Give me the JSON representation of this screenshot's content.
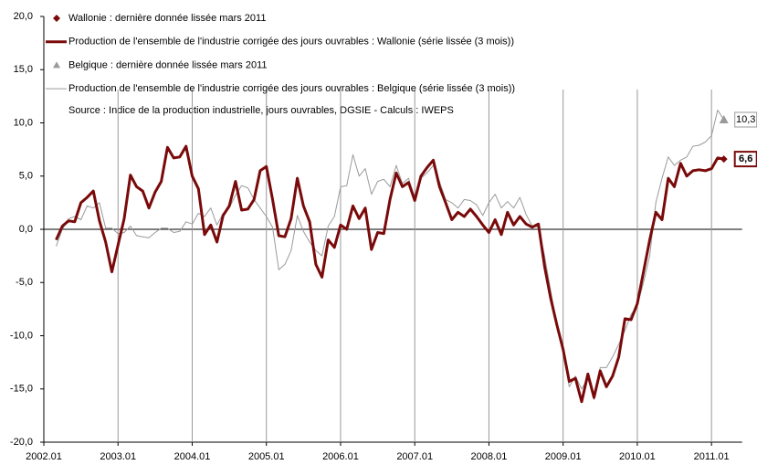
{
  "chart_data": {
    "type": "line",
    "source": "Source : Indice de la production industrielle, jours ouvrables, DGSIE - Calculs : IWEPS",
    "categories": [
      "2002.01",
      null,
      null,
      null,
      null,
      null,
      null,
      null,
      null,
      null,
      null,
      null,
      "2003.01",
      null,
      null,
      null,
      null,
      null,
      null,
      null,
      null,
      null,
      null,
      null,
      "2004.01",
      null,
      null,
      null,
      null,
      null,
      null,
      null,
      null,
      null,
      null,
      null,
      "2005.01",
      null,
      null,
      null,
      null,
      null,
      null,
      null,
      null,
      null,
      null,
      null,
      "2006.01",
      null,
      null,
      null,
      null,
      null,
      null,
      null,
      null,
      null,
      null,
      null,
      "2007.01",
      null,
      null,
      null,
      null,
      null,
      null,
      null,
      null,
      null,
      null,
      null,
      "2008.01",
      null,
      null,
      null,
      null,
      null,
      null,
      null,
      null,
      null,
      null,
      null,
      "2009.01",
      null,
      null,
      null,
      null,
      null,
      null,
      null,
      null,
      null,
      null,
      null,
      "2010.01",
      null,
      null,
      null,
      null,
      null,
      null,
      null,
      null,
      null,
      null,
      null,
      "2011.01",
      null,
      null
    ],
    "ylim": [
      -20,
      20
    ],
    "yticks": [
      {
        "value": -20,
        "label": "-20,0"
      },
      {
        "value": -15,
        "label": "-15,0"
      },
      {
        "value": -10,
        "label": "-10,0"
      },
      {
        "value": -5,
        "label": "-5,0"
      },
      {
        "value": 0,
        "label": "0,0"
      },
      {
        "value": 5,
        "label": "5,0"
      },
      {
        "value": 10,
        "label": "10,0"
      },
      {
        "value": 15,
        "label": "15,0"
      },
      {
        "value": 20,
        "label": "20,0"
      }
    ],
    "grid": true,
    "legend": "top-left",
    "series": [
      {
        "name": "Wallonie : dernière donnée lissée mars 2011",
        "color": "#7a0a0a",
        "marker": "diamond",
        "values": [
          null,
          null,
          null,
          null,
          null,
          null,
          null,
          null,
          null,
          null,
          null,
          null,
          null,
          null,
          null,
          null,
          null,
          null,
          null,
          null,
          null,
          null,
          null,
          null,
          null,
          null,
          null,
          null,
          null,
          null,
          null,
          null,
          null,
          null,
          null,
          null,
          null,
          null,
          null,
          null,
          null,
          null,
          null,
          null,
          null,
          null,
          null,
          null,
          null,
          null,
          null,
          null,
          null,
          null,
          null,
          null,
          null,
          null,
          null,
          null,
          null,
          null,
          null,
          null,
          null,
          null,
          null,
          null,
          null,
          null,
          null,
          null,
          null,
          null,
          null,
          null,
          null,
          null,
          null,
          null,
          null,
          null,
          null,
          null,
          null,
          null,
          null,
          null,
          null,
          null,
          null,
          null,
          null,
          null,
          null,
          null,
          null,
          null,
          null,
          null,
          null,
          null,
          null,
          null,
          null,
          null,
          null,
          null,
          null,
          null,
          6.6
        ],
        "value_labels": [
          null,
          null,
          null,
          null,
          null,
          null,
          null,
          null,
          null,
          null,
          null,
          null,
          null,
          null,
          null,
          null,
          null,
          null,
          null,
          null,
          null,
          null,
          null,
          null,
          null,
          null,
          null,
          null,
          null,
          null,
          null,
          null,
          null,
          null,
          null,
          null,
          null,
          null,
          null,
          null,
          null,
          null,
          null,
          null,
          null,
          null,
          null,
          null,
          null,
          null,
          null,
          null,
          null,
          null,
          null,
          null,
          null,
          null,
          null,
          null,
          null,
          null,
          null,
          null,
          null,
          null,
          null,
          null,
          null,
          null,
          null,
          null,
          null,
          null,
          null,
          null,
          null,
          null,
          null,
          null,
          null,
          null,
          null,
          null,
          null,
          null,
          null,
          null,
          null,
          null,
          null,
          null,
          null,
          null,
          null,
          null,
          null,
          null,
          null,
          null,
          null,
          null,
          null,
          null,
          null,
          null,
          null,
          null,
          null,
          null,
          "6,6"
        ]
      },
      {
        "name": "Production de l'ensemble de l'industrie corrigée des jours ouvrables : Wallonie (série lissée (3 mois))",
        "color": "#7a0a0a",
        "width": 3,
        "values": [
          null,
          null,
          -1.0,
          0.3,
          0.8,
          0.7,
          2.5,
          3.0,
          3.6,
          0.8,
          -1.2,
          -4.0,
          -1.5,
          1.0,
          5.1,
          4.0,
          3.6,
          2.0,
          3.5,
          4.5,
          7.7,
          6.7,
          6.8,
          7.8,
          5.0,
          3.8,
          -0.5,
          0.4,
          -1.2,
          1.3,
          2.2,
          4.5,
          1.8,
          1.9,
          2.8,
          5.5,
          5.9,
          2.8,
          -0.6,
          -0.7,
          1.0,
          4.8,
          2.2,
          0.7,
          -3.3,
          -4.5,
          -1.0,
          -1.7,
          0.4,
          0,
          2.2,
          1.0,
          2.0,
          -1.9,
          -0.3,
          -0.4,
          2.8,
          5.3,
          4.0,
          4.4,
          2.7,
          5.0,
          5.8,
          6.5,
          4.0,
          2.5,
          0.9,
          1.6,
          1.2,
          1.9,
          1.2,
          0.4,
          -0.3,
          0.9,
          -0.5,
          1.6,
          0.4,
          1.2,
          0.5,
          0.2,
          0.5,
          -3.5,
          -6.5,
          -9.0,
          -11.3,
          -14.3,
          -14.0,
          -16.2,
          -13.6,
          -15.8,
          -13.3,
          -14.8,
          -13.8,
          -12.0,
          -8.4,
          -8.5,
          -7.0,
          -4.0,
          -1.0,
          1.6,
          0.9,
          4.8,
          4.0,
          6.2,
          5.0,
          5.5,
          5.6,
          5.5,
          5.7,
          6.7,
          6.6
        ]
      },
      {
        "name": "Belgique : dernière donnée lissée mars 2011",
        "color": "#9a9a9a",
        "marker": "triangle",
        "values": [
          null,
          null,
          null,
          null,
          null,
          null,
          null,
          null,
          null,
          null,
          null,
          null,
          null,
          null,
          null,
          null,
          null,
          null,
          null,
          null,
          null,
          null,
          null,
          null,
          null,
          null,
          null,
          null,
          null,
          null,
          null,
          null,
          null,
          null,
          null,
          null,
          null,
          null,
          null,
          null,
          null,
          null,
          null,
          null,
          null,
          null,
          null,
          null,
          null,
          null,
          null,
          null,
          null,
          null,
          null,
          null,
          null,
          null,
          null,
          null,
          null,
          null,
          null,
          null,
          null,
          null,
          null,
          null,
          null,
          null,
          null,
          null,
          null,
          null,
          null,
          null,
          null,
          null,
          null,
          null,
          null,
          null,
          null,
          null,
          null,
          null,
          null,
          null,
          null,
          null,
          null,
          null,
          null,
          null,
          null,
          null,
          null,
          null,
          null,
          null,
          null,
          null,
          null,
          null,
          null,
          null,
          null,
          null,
          null,
          null,
          10.3
        ],
        "value_labels": [
          null,
          null,
          null,
          null,
          null,
          null,
          null,
          null,
          null,
          null,
          null,
          null,
          null,
          null,
          null,
          null,
          null,
          null,
          null,
          null,
          null,
          null,
          null,
          null,
          null,
          null,
          null,
          null,
          null,
          null,
          null,
          null,
          null,
          null,
          null,
          null,
          null,
          null,
          null,
          null,
          null,
          null,
          null,
          null,
          null,
          null,
          null,
          null,
          null,
          null,
          null,
          null,
          null,
          null,
          null,
          null,
          null,
          null,
          null,
          null,
          null,
          null,
          null,
          null,
          null,
          null,
          null,
          null,
          null,
          null,
          null,
          null,
          null,
          null,
          null,
          null,
          null,
          null,
          null,
          null,
          null,
          null,
          null,
          null,
          null,
          null,
          null,
          null,
          null,
          null,
          null,
          null,
          null,
          null,
          null,
          null,
          null,
          null,
          null,
          null,
          null,
          null,
          null,
          null,
          null,
          null,
          null,
          null,
          null,
          null,
          "10,3"
        ]
      },
      {
        "name": "Production de l'ensemble de l'industrie corrigée des jours ouvrables : Belgique (série lissée (3 mois))",
        "color": "#9a9a9a",
        "width": 1,
        "values": [
          null,
          null,
          -1.6,
          0,
          1.0,
          1.2,
          0.9,
          2.2,
          2.0,
          2.5,
          0.1,
          0.1,
          -0.4,
          -0.3,
          0.3,
          -0.6,
          -0.7,
          -0.8,
          -0.3,
          0.1,
          0.1,
          -0.3,
          -0.2,
          0.7,
          0.5,
          1.5,
          1.2,
          2.0,
          0.4,
          1.5,
          2.0,
          3.2,
          4.1,
          3.9,
          2.8,
          2.0,
          1.2,
          0.2,
          -3.8,
          -3.3,
          -2.0,
          1.3,
          -0.2,
          -1.2,
          -2.0,
          -2.5,
          0.3,
          1.2,
          4.0,
          4.1,
          7.0,
          5.0,
          5.7,
          3.3,
          4.5,
          4.7,
          4.0,
          6.0,
          4.3,
          4.8,
          3.0,
          4.8,
          5.3,
          6.0,
          4.5,
          2.8,
          2.5,
          2.0,
          2.8,
          2.7,
          2.3,
          1.3,
          2.5,
          3.3,
          2.0,
          2.6,
          2.0,
          3.0,
          1.4,
          0.3,
          0.2,
          -2.5,
          -5.8,
          -9.0,
          -11.5,
          -14.8,
          -13.8,
          -15.0,
          -14.0,
          -16.0,
          -13.0,
          -13.0,
          -12.0,
          -10.8,
          -9.5,
          -8.0,
          -7.2,
          -5.0,
          -2.5,
          2.5,
          4.8,
          6.8,
          6.0,
          6.5,
          6.8,
          7.8,
          7.9,
          8.2,
          8.8,
          11.2,
          10.3
        ]
      }
    ]
  }
}
